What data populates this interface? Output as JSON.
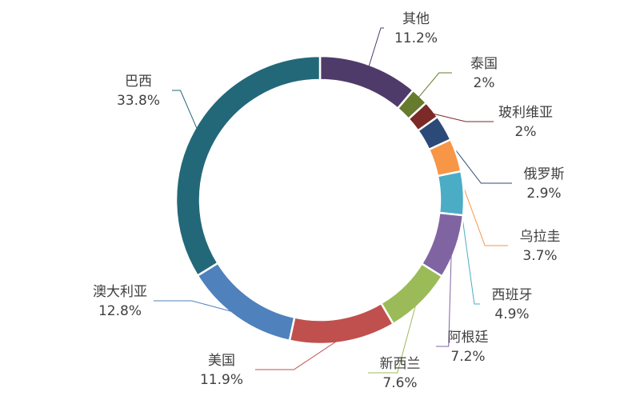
{
  "chart_data": {
    "type": "pie",
    "style": "donut",
    "series": [
      {
        "name": "其他",
        "value": 11.2,
        "label": "11.2%",
        "color": "#4e3b6a"
      },
      {
        "name": "泰国",
        "value": 2.0,
        "label": "2%",
        "color": "#667b2e"
      },
      {
        "name": "玻利维亚",
        "value": 2.0,
        "label": "2%",
        "color": "#7b2a27"
      },
      {
        "name": "俄罗斯",
        "value": 2.9,
        "label": "2.9%",
        "color": "#2c4a78"
      },
      {
        "name": "乌拉圭",
        "value": 3.7,
        "label": "3.7%",
        "color": "#f79646"
      },
      {
        "name": "西班牙",
        "value": 4.9,
        "label": "4.9%",
        "color": "#4bacc6"
      },
      {
        "name": "阿根廷",
        "value": 7.2,
        "label": "7.2%",
        "color": "#8064a2"
      },
      {
        "name": "新西兰",
        "value": 7.6,
        "label": "7.6%",
        "color": "#9bbb59"
      },
      {
        "name": "美国",
        "value": 11.9,
        "label": "11.9%",
        "color": "#c0504d"
      },
      {
        "name": "澳大利亚",
        "value": 12.8,
        "label": "12.8%",
        "color": "#4f81bd"
      },
      {
        "name": "巴西",
        "value": 33.8,
        "label": "33.8%",
        "color": "#226878"
      }
    ],
    "start_angle_deg": 0,
    "direction": "clockwise",
    "legend": "none"
  }
}
